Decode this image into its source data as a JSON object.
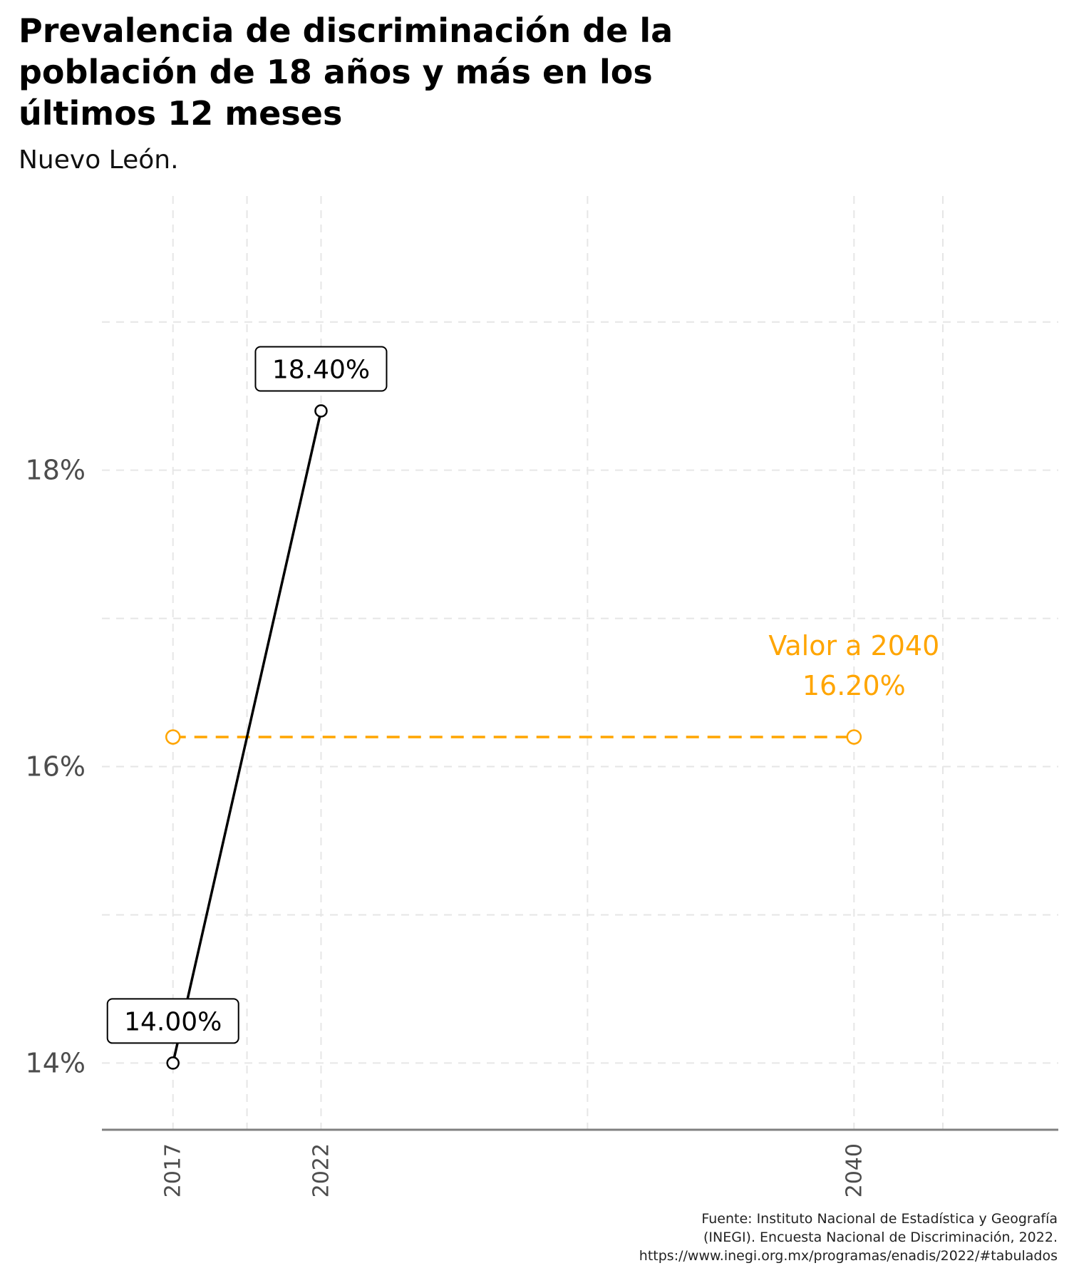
{
  "chart_data": {
    "type": "line",
    "title_lines": [
      "Prevalencia de discriminación de la",
      "población de 18 años y más en los",
      "últimos 12 meses"
    ],
    "subtitle": "Nuevo León.",
    "x_ticks": [
      2017,
      2022,
      2040
    ],
    "x_grid_minor": [
      2019.5,
      2031,
      2043
    ],
    "y_ticks": [
      {
        "value": 14,
        "label": "14%"
      },
      {
        "value": 16,
        "label": "16%"
      },
      {
        "value": 18,
        "label": "18%"
      }
    ],
    "y_grid_minor": [
      15,
      17,
      19
    ],
    "xlim": [
      2014.6,
      2046.9
    ],
    "ylim": [
      13.55,
      19.85
    ],
    "grid": true,
    "series": [
      {
        "points": [
          {
            "x": 2017,
            "y": 14.0,
            "label": "14.00%"
          },
          {
            "x": 2022,
            "y": 18.4,
            "label": "18.40%"
          }
        ],
        "color": "#000000"
      }
    ],
    "target": {
      "x": [
        2017,
        2040
      ],
      "y": 16.2,
      "label_line1": "Valor a 2040",
      "label_line2": "16.20%",
      "color": "#FFA500"
    },
    "caption_lines": [
      "Fuente: Instituto Nacional de Estadística y Geografía",
      "(INEGI). Encuesta Nacional de Discriminación, 2022.",
      "https://www.inegi.org.mx/programas/enadis/2022/#tabulados"
    ]
  }
}
